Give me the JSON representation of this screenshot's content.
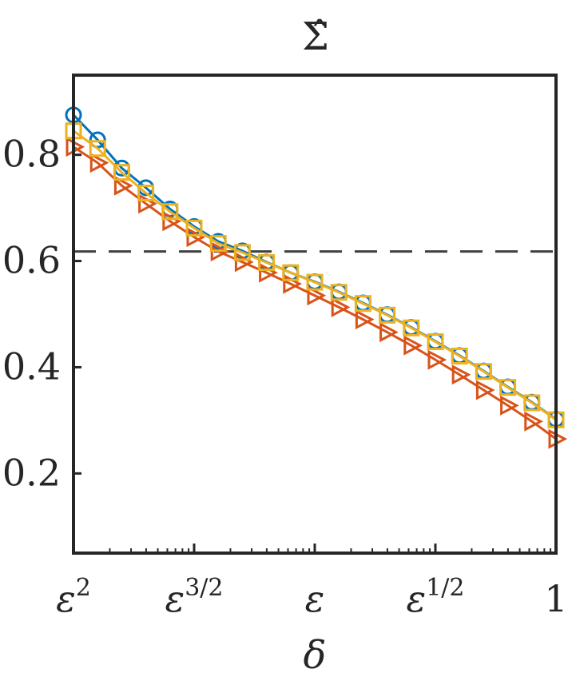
{
  "chart_data": {
    "type": "line",
    "title": "Σ̂",
    "xlabel": "δ",
    "ylabel": "",
    "xscale": "log",
    "x_base": "ε",
    "xlim": [
      2,
      0
    ],
    "ylim": [
      0.05,
      0.95
    ],
    "grid": false,
    "legend": "none",
    "x_ticks": [
      {
        "exponent": 2,
        "base": "ε",
        "sup": "2"
      },
      {
        "exponent": 1.5,
        "base": "ε",
        "sup": "3/2"
      },
      {
        "exponent": 1,
        "base": "ε",
        "sup": ""
      },
      {
        "exponent": 0.5,
        "base": "ε",
        "sup": "1/2"
      },
      {
        "exponent": 0,
        "base": "1",
        "sup": ""
      }
    ],
    "y_ticks": [
      {
        "value": 0.2,
        "label": "0.2"
      },
      {
        "value": 0.4,
        "label": "0.4"
      },
      {
        "value": 0.6,
        "label": "0.6"
      },
      {
        "value": 0.8,
        "label": "0.8"
      }
    ],
    "reference_line": {
      "value": 0.618,
      "style": "dashed",
      "color": "#404040"
    },
    "series": [
      {
        "marker": "circle",
        "color": "#0072BD",
        "x": [
          2.0,
          1.9,
          1.8,
          1.7,
          1.6,
          1.5,
          1.4,
          1.3,
          1.2,
          1.1,
          1.0,
          0.9,
          0.8,
          0.7,
          0.6,
          0.5,
          0.4,
          0.3,
          0.2,
          0.1,
          0.0
        ],
        "values": [
          0.875,
          0.828,
          0.775,
          0.738,
          0.698,
          0.665,
          0.637,
          0.619,
          0.598,
          0.578,
          0.561,
          0.542,
          0.521,
          0.499,
          0.475,
          0.449,
          0.422,
          0.393,
          0.363,
          0.334,
          0.302
        ]
      },
      {
        "marker": "square",
        "color": "#EDB120",
        "x": [
          2.0,
          1.9,
          1.8,
          1.7,
          1.6,
          1.5,
          1.4,
          1.3,
          1.2,
          1.1,
          1.0,
          0.9,
          0.8,
          0.7,
          0.6,
          0.5,
          0.4,
          0.3,
          0.2,
          0.1,
          0.0
        ],
        "values": [
          0.845,
          0.812,
          0.767,
          0.728,
          0.693,
          0.662,
          0.633,
          0.616,
          0.597,
          0.578,
          0.56,
          0.541,
          0.52,
          0.498,
          0.474,
          0.448,
          0.421,
          0.392,
          0.362,
          0.333,
          0.301
        ]
      },
      {
        "marker": "triangle-right",
        "color": "#D95319",
        "x": [
          2.0,
          1.9,
          1.8,
          1.7,
          1.6,
          1.5,
          1.4,
          1.3,
          1.2,
          1.1,
          1.0,
          0.9,
          0.8,
          0.7,
          0.6,
          0.5,
          0.4,
          0.3,
          0.2,
          0.1,
          0.0
        ],
        "values": [
          0.815,
          0.785,
          0.742,
          0.708,
          0.675,
          0.645,
          0.618,
          0.598,
          0.578,
          0.557,
          0.535,
          0.513,
          0.49,
          0.466,
          0.441,
          0.414,
          0.386,
          0.357,
          0.328,
          0.298,
          0.265
        ]
      }
    ]
  }
}
